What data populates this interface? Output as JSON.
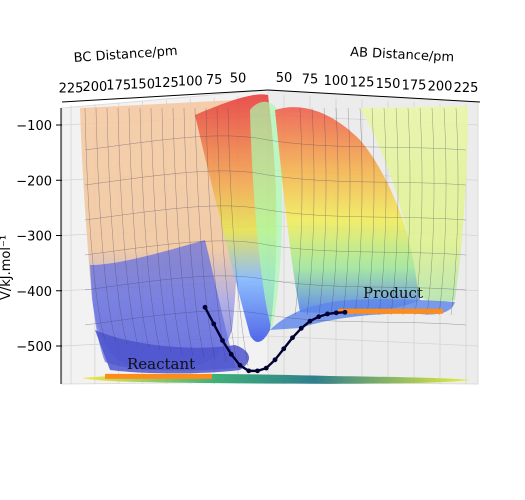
{
  "chart_data": {
    "type": "surface3d",
    "x_axis": {
      "label": "AB Distance/pm",
      "ticks": [
        50,
        75,
        100,
        125,
        150,
        175,
        200,
        225
      ]
    },
    "y_axis": {
      "label": "BC Distance/pm",
      "ticks": [
        225,
        200,
        175,
        150,
        125,
        100,
        75,
        50
      ]
    },
    "z_axis": {
      "label": "V/kJ.mol⁻¹",
      "ticks": [
        -100,
        -200,
        -300,
        -400,
        -500
      ],
      "range": [
        -570,
        -80
      ]
    },
    "annotations": [
      {
        "text": "Reactant",
        "side": "left"
      },
      {
        "text": "Product",
        "side": "right"
      }
    ],
    "trajectory_energy": [
      -430,
      -460,
      -490,
      -515,
      -535,
      -545,
      -545,
      -540,
      -525,
      -505,
      -485,
      -468,
      -455,
      -447,
      -442,
      -440,
      -439
    ],
    "reactant_level": -555,
    "product_level": -437,
    "colors": {
      "trajectory": "#000033",
      "reactant_product_lines": "#ff8c1a",
      "surface_low": "#3a4ad6",
      "surface_high": "#f0a060"
    }
  }
}
